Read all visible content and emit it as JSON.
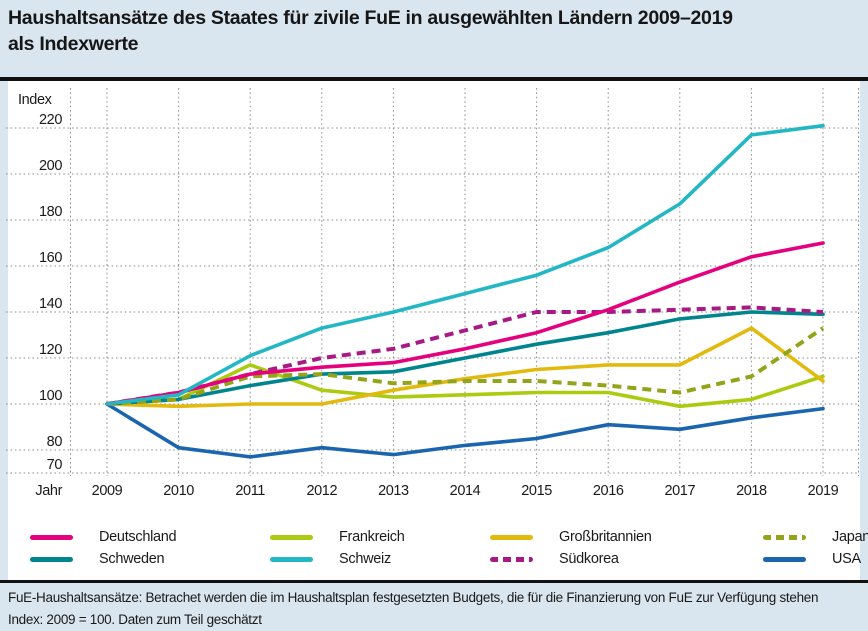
{
  "title": {
    "line1": "Haushaltsansätze des Staates für zivile FuE in ausgewählten Ländern 2009–2019",
    "line2": "als Indexwerte"
  },
  "axes": {
    "y_label": "Index",
    "x_label": "Jahr",
    "y_ticks": [
      220,
      200,
      180,
      160,
      140,
      120,
      100,
      80,
      70
    ],
    "x_ticks": [
      2009,
      2010,
      2011,
      2012,
      2013,
      2014,
      2015,
      2016,
      2017,
      2018,
      2019
    ]
  },
  "chart_data": {
    "type": "line",
    "title": "Haushaltsansätze des Staates für zivile FuE in ausgewählten Ländern 2009–2019 als Indexwerte",
    "xlabel": "Jahr",
    "ylabel": "Index",
    "x": [
      2009,
      2010,
      2011,
      2012,
      2013,
      2014,
      2015,
      2016,
      2017,
      2018,
      2019
    ],
    "ylim": [
      70,
      225
    ],
    "grid": "dotted",
    "legend_position": "bottom",
    "series": [
      {
        "name": "Deutschland",
        "color": "#e5007d",
        "dashed": false,
        "values": [
          100,
          105,
          113,
          116,
          118,
          124,
          131,
          141,
          153,
          164,
          170
        ]
      },
      {
        "name": "Frankreich",
        "color": "#abcb10",
        "dashed": false,
        "values": [
          100,
          102,
          117,
          106,
          103,
          104,
          105,
          105,
          99,
          102,
          112
        ]
      },
      {
        "name": "Großbritannien",
        "color": "#e2ba0f",
        "dashed": false,
        "values": [
          100,
          99,
          100,
          100,
          106,
          111,
          115,
          117,
          117,
          133,
          110
        ]
      },
      {
        "name": "Japan",
        "color": "#93a41a",
        "dashed": true,
        "values": [
          100,
          102,
          112,
          113,
          109,
          110,
          110,
          108,
          105,
          112,
          133
        ]
      },
      {
        "name": "Schweden",
        "color": "#00858f",
        "dashed": false,
        "values": [
          100,
          102,
          108,
          113,
          114,
          120,
          126,
          131,
          137,
          140,
          139
        ]
      },
      {
        "name": "Schweiz",
        "color": "#23b7c4",
        "dashed": false,
        "values": [
          100,
          104,
          121,
          133,
          140,
          148,
          156,
          168,
          187,
          217,
          221
        ]
      },
      {
        "name": "Südkorea",
        "color": "#a71a85",
        "dashed": true,
        "values": [
          100,
          105,
          113,
          120,
          124,
          132,
          140,
          140,
          141,
          142,
          140
        ]
      },
      {
        "name": "USA",
        "color": "#1a65ae",
        "dashed": false,
        "values": [
          100,
          81,
          77,
          81,
          78,
          82,
          85,
          91,
          89,
          94,
          98
        ]
      }
    ],
    "index_note": "Index: 2009 = 100"
  },
  "legend": {
    "rows": [
      [
        "Deutschland",
        "Frankreich",
        "Großbritannien",
        "Japan"
      ],
      [
        "Schweden",
        "Schweiz",
        "Südkorea",
        "USA"
      ]
    ]
  },
  "footer": {
    "line1": "FuE-Haushaltsansätze: Betrachet werden die im Haushaltsplan festgesetzten Budgets, die für die Finanzierung von FuE zur Verfügung stehen",
    "line2": "Index: 2009 = 100. Daten zum Teil geschätzt"
  },
  "colors": {
    "page_background": "#d9e5ef",
    "panel_background": "#ffffff",
    "grid": "#8f8f8f",
    "rule": "#111111",
    "text": "#1a1a1a"
  }
}
